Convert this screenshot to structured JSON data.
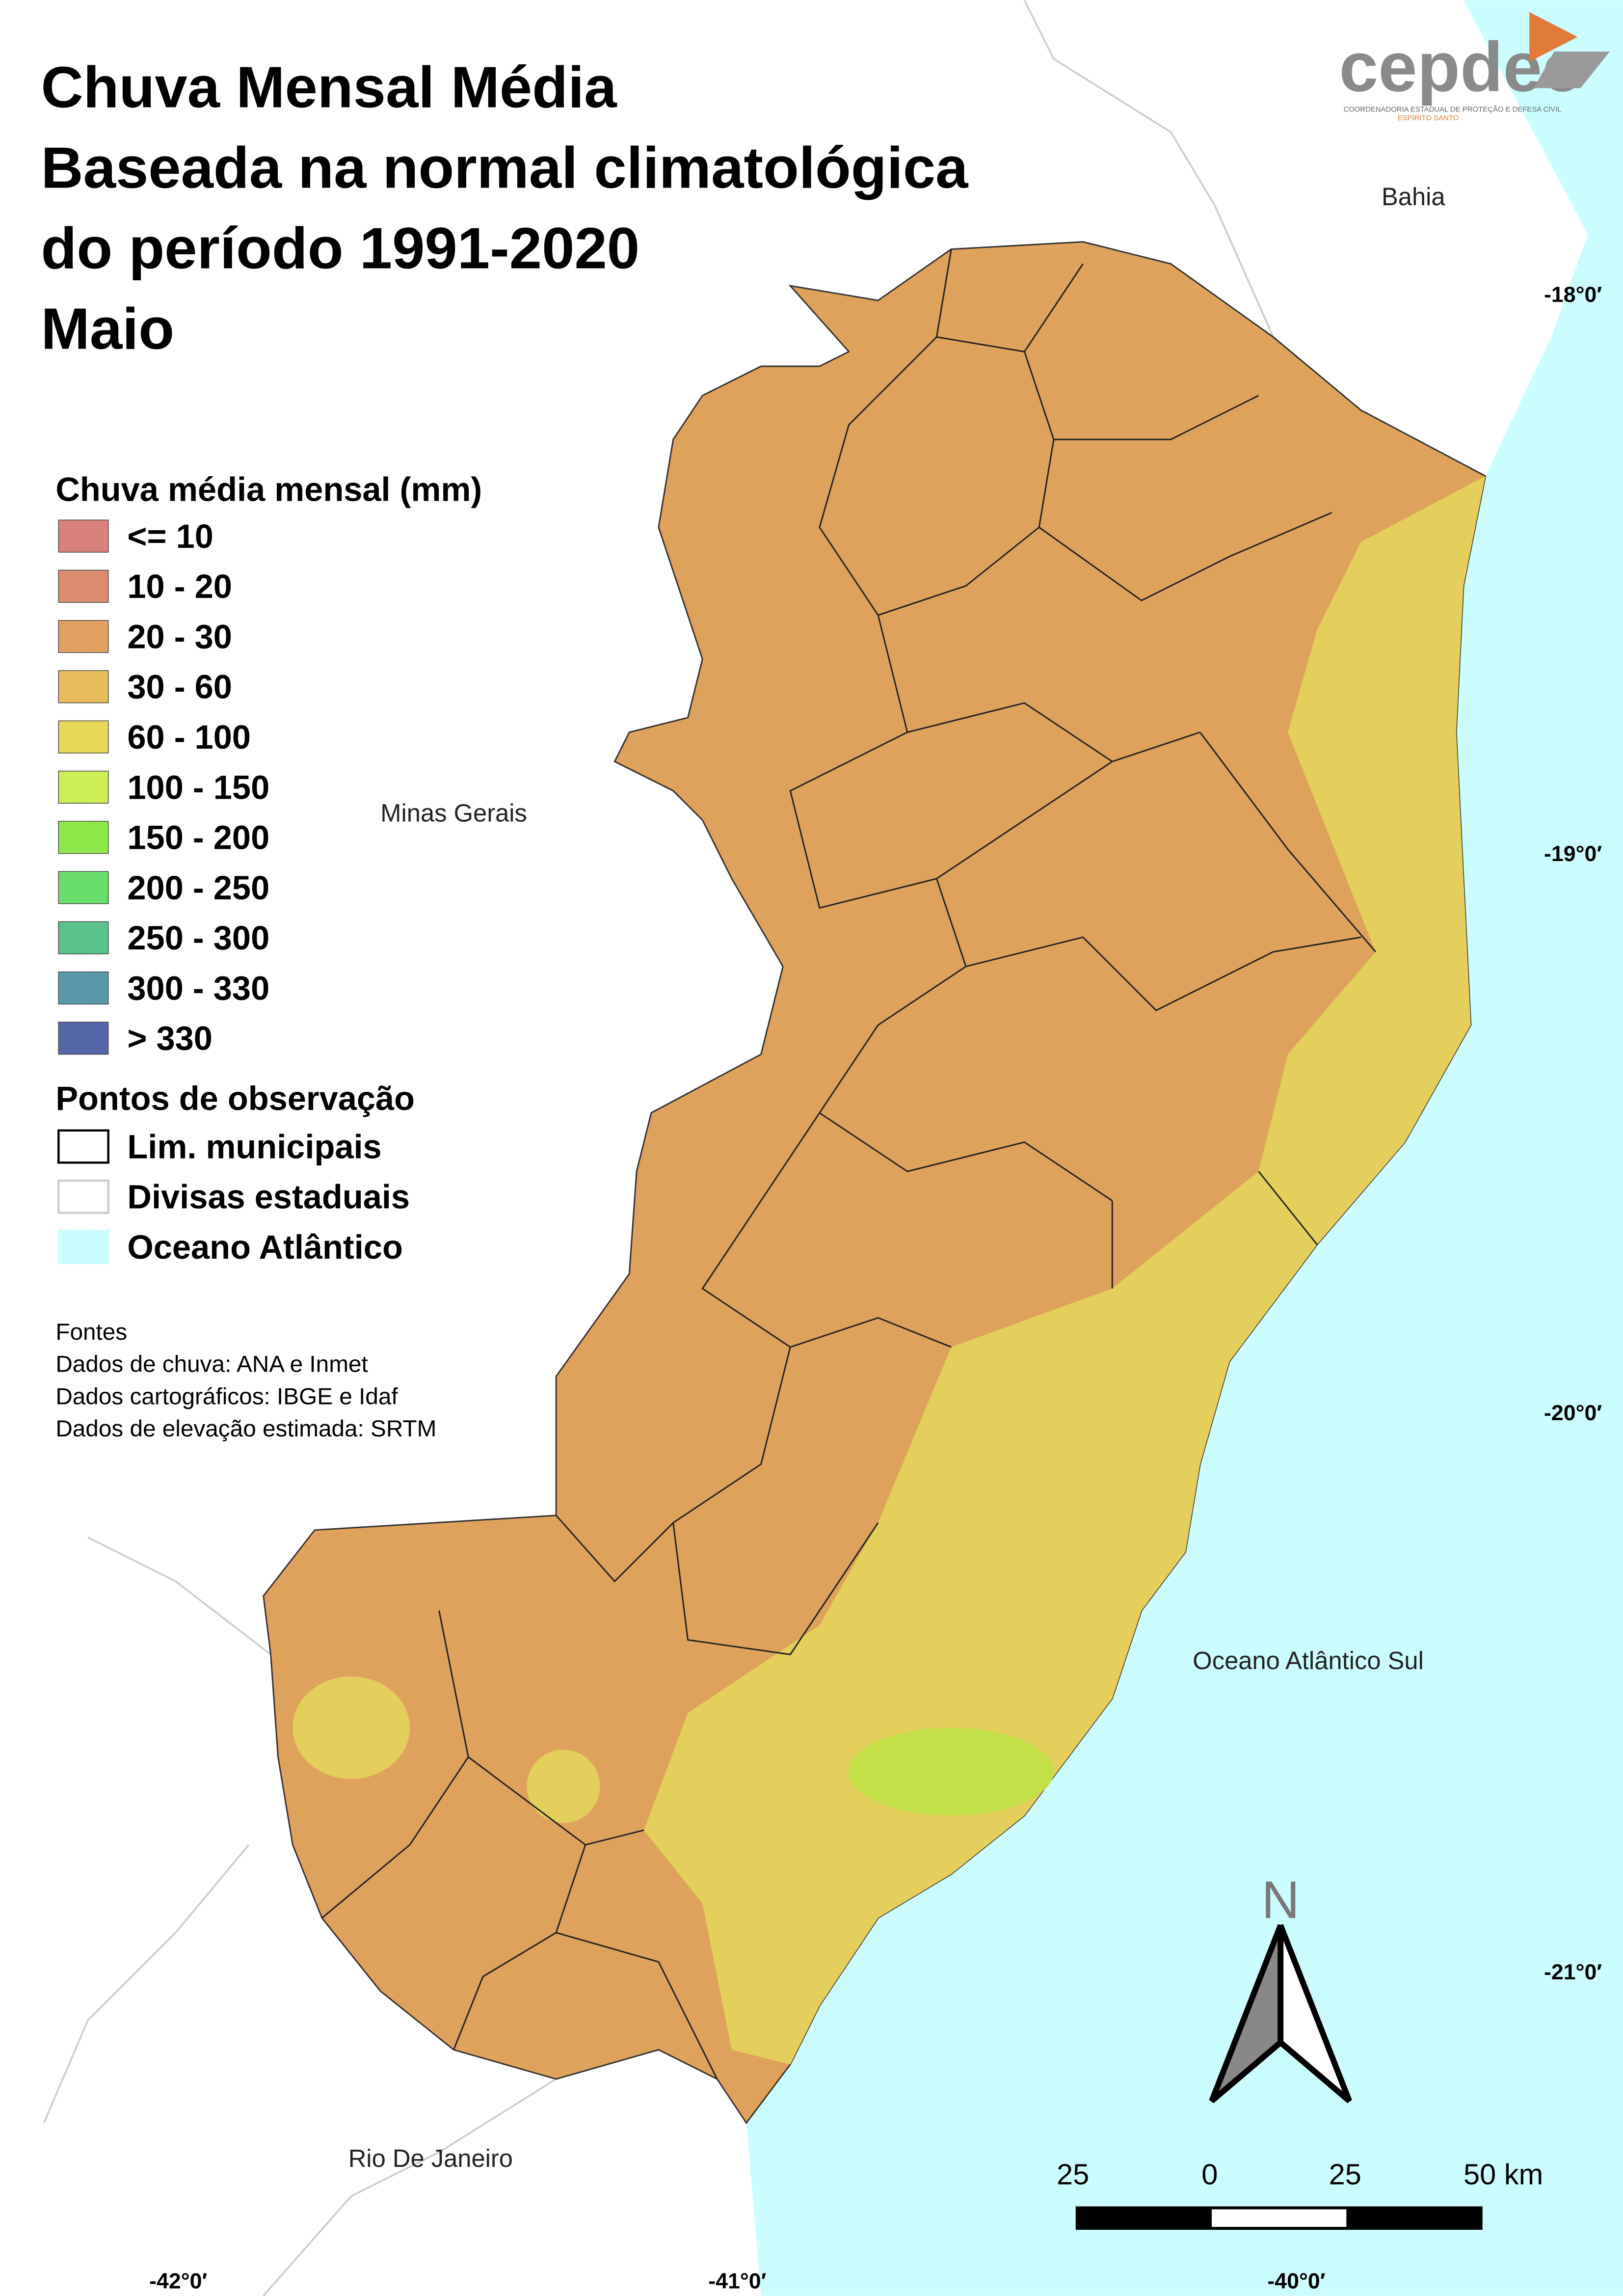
{
  "header": {
    "title": [
      "Chuva Mensal Média",
      "Baseada na normal climatológica",
      "do período 1991-2020",
      "Maio"
    ],
    "logo": "cepdec",
    "logo_subtitle": [
      "COORDENADORIA ESTADUAL DE PROTEÇÃO E DEFESA CIVIL",
      "ESPÍRITO SANTO"
    ]
  },
  "legend": {
    "title": "Chuva média mensal (mm)",
    "items": [
      {
        "label": "<= 10",
        "color": "#d9827b"
      },
      {
        "label": "10 - 20",
        "color": "#dc8d70"
      },
      {
        "label": "20 - 30",
        "color": "#e0a060"
      },
      {
        "label": "30 - 60",
        "color": "#e8bc5a"
      },
      {
        "label": "60 - 100",
        "color": "#e8da58"
      },
      {
        "label": "100 - 150",
        "color": "#cdee55"
      },
      {
        "label": "150 - 200",
        "color": "#8fe84a"
      },
      {
        "label": "200 - 250",
        "color": "#6ade6a"
      },
      {
        "label": "250 - 300",
        "color": "#5ac38d"
      },
      {
        "label": "300 - 330",
        "color": "#5898a8"
      },
      {
        "label": "> 330",
        "color": "#5466a8"
      }
    ]
  },
  "observation": {
    "title": "Pontos de observação",
    "items": [
      {
        "label": "Lim. municipais",
        "fill": "#ffffff",
        "stroke": "#000000"
      },
      {
        "label": "Divisas estaduais",
        "fill": "#ffffff",
        "stroke": "#cccccc"
      },
      {
        "label": "Oceano Atlântico",
        "fill": "#ccfdfe",
        "stroke": "#ccfdfe"
      }
    ]
  },
  "sources": {
    "title": "Fontes",
    "lines": [
      "Dados de chuva: ANA e Inmet",
      "Dados cartográficos: IBGE e Idaf",
      "Dados de elevação estimada: SRTM"
    ]
  },
  "map_labels": {
    "bahia": "Bahia",
    "minas": "Minas Gerais",
    "rio": "Rio De Janeiro",
    "ocean": "Oceano Atlântico Sul"
  },
  "latitudes": [
    "-18°0′",
    "-19°0′",
    "-20°0′",
    "-21°0′"
  ],
  "longitudes": [
    "-42°0′",
    "-41°0′",
    "-40°0′"
  ],
  "north": "N",
  "scale_bar": [
    "25",
    "0",
    "25",
    "50 km"
  ]
}
